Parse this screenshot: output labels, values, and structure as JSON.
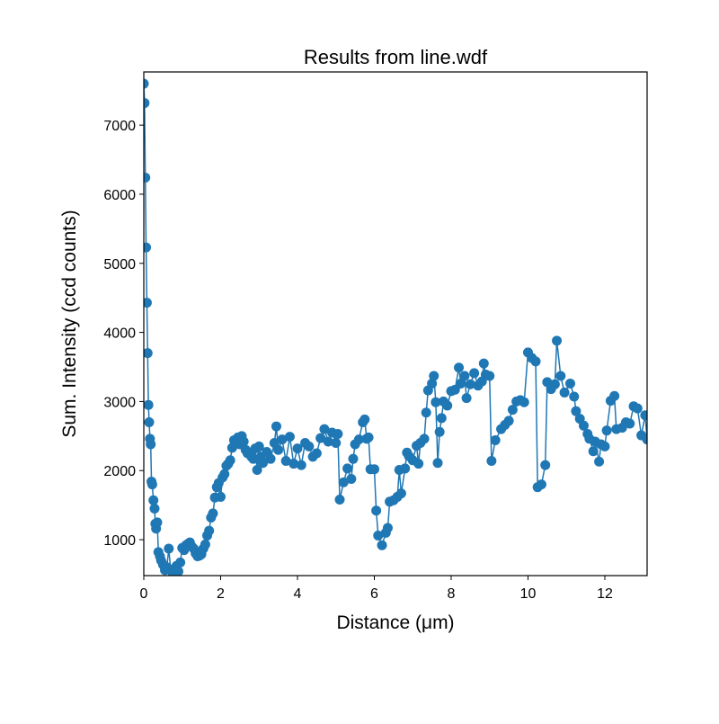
{
  "chart_data": {
    "type": "line",
    "title": "Results from line.wdf",
    "x_label": "Distance (μm)",
    "y_label": "Sum. Intensity (ccd counts)",
    "color": "#1f77b4",
    "markers": true,
    "x": [
      0,
      0.02,
      0.04,
      0.06,
      0.08,
      0.1,
      0.12,
      0.14,
      0.16,
      0.18,
      0.2,
      0.22,
      0.25,
      0.28,
      0.3,
      0.32,
      0.35,
      0.38,
      0.42,
      0.45,
      0.5,
      0.55,
      0.6,
      0.65,
      0.7,
      0.75,
      0.8,
      0.85,
      0.9,
      0.95,
      1.0,
      1.05,
      1.1,
      1.15,
      1.2,
      1.25,
      1.3,
      1.35,
      1.4,
      1.45,
      1.5,
      1.55,
      1.6,
      1.65,
      1.7,
      1.75,
      1.8,
      1.85,
      1.9,
      1.95,
      2.0,
      2.05,
      2.1,
      2.15,
      2.2,
      2.25,
      2.3,
      2.35,
      2.4,
      2.45,
      2.5,
      2.55,
      2.6,
      2.65,
      2.7,
      2.8,
      2.85,
      2.9,
      2.95,
      3.0,
      3.05,
      3.1,
      3.2,
      3.3,
      3.4,
      3.45,
      3.5,
      3.6,
      3.7,
      3.8,
      3.9,
      4.0,
      4.1,
      4.2,
      4.3,
      4.4,
      4.5,
      4.6,
      4.7,
      4.8,
      4.9,
      5.0,
      5.05,
      5.1,
      5.2,
      5.3,
      5.4,
      5.45,
      5.5,
      5.6,
      5.7,
      5.75,
      5.8,
      5.85,
      5.9,
      6.0,
      6.05,
      6.1,
      6.2,
      6.3,
      6.35,
      6.4,
      6.5,
      6.6,
      6.65,
      6.7,
      6.8,
      6.85,
      6.9,
      7.0,
      7.1,
      7.15,
      7.2,
      7.3,
      7.35,
      7.4,
      7.5,
      7.55,
      7.6,
      7.65,
      7.7,
      7.75,
      7.8,
      7.9,
      8.0,
      8.1,
      8.2,
      8.25,
      8.35,
      8.4,
      8.5,
      8.6,
      8.7,
      8.8,
      8.85,
      8.9,
      9.0,
      9.05,
      9.15,
      9.3,
      9.4,
      9.5,
      9.6,
      9.7,
      9.8,
      9.9,
      10.0,
      10.1,
      10.2,
      10.25,
      10.35,
      10.45,
      10.5,
      10.6,
      10.7,
      10.75,
      10.85,
      10.95,
      11.1,
      11.2,
      11.25,
      11.35,
      11.45,
      11.55,
      11.6,
      11.7,
      11.75,
      11.85,
      11.9,
      12.0,
      12.05,
      12.15,
      12.25,
      12.3,
      12.45,
      12.55,
      12.65,
      12.75,
      12.85,
      12.95,
      13.05,
      13.1
    ],
    "values": [
      7600,
      7320,
      6240,
      5230,
      4430,
      3700,
      2950,
      2700,
      2460,
      2380,
      1840,
      1800,
      1570,
      1450,
      1230,
      1160,
      1250,
      820,
      760,
      700,
      640,
      560,
      600,
      870,
      560,
      520,
      580,
      620,
      540,
      670,
      880,
      850,
      920,
      940,
      960,
      900,
      870,
      800,
      760,
      770,
      790,
      870,
      930,
      1060,
      1130,
      1320,
      1380,
      1610,
      1760,
      1820,
      1620,
      1900,
      1950,
      2070,
      2100,
      2150,
      2330,
      2440,
      2390,
      2480,
      2380,
      2500,
      2420,
      2300,
      2250,
      2200,
      2170,
      2320,
      2010,
      2350,
      2200,
      2110,
      2270,
      2170,
      2400,
      2640,
      2300,
      2450,
      2140,
      2490,
      2100,
      2320,
      2080,
      2400,
      2350,
      2200,
      2250,
      2470,
      2600,
      2420,
      2550,
      2400,
      2530,
      1580,
      1830,
      2030,
      1880,
      2170,
      2380,
      2450,
      2700,
      2740,
      2460,
      2480,
      2020,
      2020,
      1420,
      1060,
      920,
      1100,
      1170,
      1550,
      1570,
      1620,
      2010,
      1670,
      2030,
      2260,
      2210,
      2150,
      2360,
      2100,
      2400,
      2460,
      2840,
      3160,
      3260,
      3370,
      2990,
      2110,
      2560,
      2760,
      3000,
      2940,
      3150,
      3170,
      3490,
      3260,
      3370,
      3050,
      3250,
      3410,
      3230,
      3290,
      3550,
      3390,
      3370,
      2140,
      2440,
      2600,
      2660,
      2720,
      2880,
      3000,
      3020,
      2990,
      3710,
      3630,
      3580,
      1760,
      1800,
      2080,
      3280,
      3180,
      3250,
      3880,
      3370,
      3130,
      3260,
      3070,
      2860,
      2750,
      2650,
      2530,
      2460,
      2280,
      2420,
      2130,
      2380,
      2350,
      2580,
      3010,
      3080,
      2600,
      2620,
      2700,
      2680,
      2930,
      2900,
      2510,
      2800,
      2450
    ],
    "xlim": [
      0,
      13.1
    ],
    "ylim": [
      480,
      7770
    ],
    "xticks": [
      0,
      2,
      4,
      6,
      8,
      10,
      12
    ],
    "yticks": [
      1000,
      2000,
      3000,
      4000,
      5000,
      6000,
      7000
    ]
  }
}
